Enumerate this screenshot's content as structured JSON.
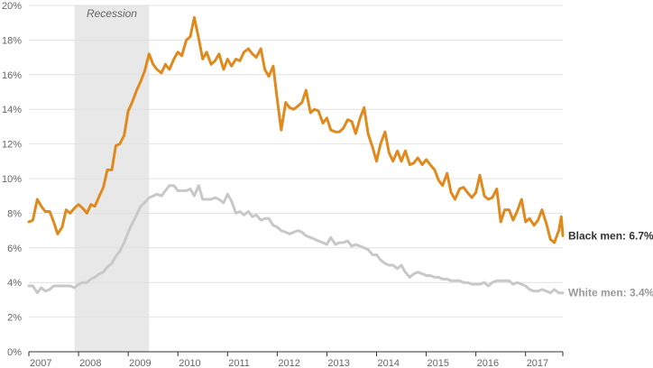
{
  "chart_data": {
    "type": "line",
    "title": "",
    "xlabel": "",
    "ylabel": "",
    "xlim": [
      2007.0,
      2017.75
    ],
    "ylim": [
      0,
      20
    ],
    "grid": true,
    "y_ticks": [
      0,
      2,
      4,
      6,
      8,
      10,
      12,
      14,
      16,
      18,
      20
    ],
    "y_tick_labels": [
      "0%",
      "2%",
      "4%",
      "6%",
      "8%",
      "10%",
      "12%",
      "14%",
      "16%",
      "18%",
      "20%"
    ],
    "x_ticks": [
      2007,
      2008,
      2009,
      2010,
      2011,
      2012,
      2013,
      2014,
      2015,
      2016,
      2017
    ],
    "x_tick_labels": [
      "2007",
      "2008",
      "2009",
      "2010",
      "2011",
      "2012",
      "2013",
      "2014",
      "2015",
      "2016",
      "2017"
    ],
    "recession": {
      "label": "Recession",
      "start": 2007.92,
      "end": 2009.42,
      "color": "#e8e8e8"
    },
    "series": [
      {
        "name": "Black men",
        "end_label": "Black men: 6.7%",
        "color": "#e08a1e",
        "points": [
          [
            2007.0,
            7.5
          ],
          [
            2007.08,
            7.6
          ],
          [
            2007.17,
            8.8
          ],
          [
            2007.25,
            8.4
          ],
          [
            2007.33,
            8.1
          ],
          [
            2007.42,
            8.1
          ],
          [
            2007.5,
            7.5
          ],
          [
            2007.58,
            6.8
          ],
          [
            2007.67,
            7.2
          ],
          [
            2007.75,
            8.2
          ],
          [
            2007.83,
            8.0
          ],
          [
            2007.92,
            8.3
          ],
          [
            2008.0,
            8.5
          ],
          [
            2008.08,
            8.3
          ],
          [
            2008.17,
            8.0
          ],
          [
            2008.25,
            8.5
          ],
          [
            2008.33,
            8.4
          ],
          [
            2008.42,
            9.0
          ],
          [
            2008.5,
            9.5
          ],
          [
            2008.58,
            10.5
          ],
          [
            2008.67,
            10.5
          ],
          [
            2008.75,
            11.9
          ],
          [
            2008.83,
            12.0
          ],
          [
            2008.92,
            12.5
          ],
          [
            2009.0,
            13.9
          ],
          [
            2009.08,
            14.4
          ],
          [
            2009.17,
            15.1
          ],
          [
            2009.25,
            15.6
          ],
          [
            2009.33,
            16.2
          ],
          [
            2009.42,
            17.2
          ],
          [
            2009.5,
            16.6
          ],
          [
            2009.58,
            16.3
          ],
          [
            2009.67,
            16.1
          ],
          [
            2009.75,
            16.6
          ],
          [
            2009.83,
            16.3
          ],
          [
            2009.92,
            16.9
          ],
          [
            2010.0,
            17.3
          ],
          [
            2010.08,
            17.1
          ],
          [
            2010.17,
            18.0
          ],
          [
            2010.25,
            18.2
          ],
          [
            2010.33,
            19.3
          ],
          [
            2010.42,
            18.1
          ],
          [
            2010.5,
            16.9
          ],
          [
            2010.58,
            17.3
          ],
          [
            2010.67,
            16.6
          ],
          [
            2010.75,
            16.8
          ],
          [
            2010.83,
            17.2
          ],
          [
            2010.92,
            16.3
          ],
          [
            2011.0,
            16.9
          ],
          [
            2011.08,
            16.5
          ],
          [
            2011.17,
            16.9
          ],
          [
            2011.25,
            16.8
          ],
          [
            2011.33,
            17.3
          ],
          [
            2011.42,
            17.5
          ],
          [
            2011.5,
            17.2
          ],
          [
            2011.58,
            17.0
          ],
          [
            2011.67,
            17.5
          ],
          [
            2011.75,
            16.3
          ],
          [
            2011.83,
            15.9
          ],
          [
            2011.92,
            16.5
          ],
          [
            2012.0,
            14.6
          ],
          [
            2012.08,
            12.8
          ],
          [
            2012.17,
            14.4
          ],
          [
            2012.25,
            14.1
          ],
          [
            2012.33,
            14.0
          ],
          [
            2012.42,
            14.2
          ],
          [
            2012.5,
            14.4
          ],
          [
            2012.58,
            15.1
          ],
          [
            2012.67,
            13.8
          ],
          [
            2012.75,
            14.0
          ],
          [
            2012.83,
            13.9
          ],
          [
            2012.92,
            13.2
          ],
          [
            2013.0,
            13.5
          ],
          [
            2013.08,
            12.8
          ],
          [
            2013.17,
            12.7
          ],
          [
            2013.25,
            12.7
          ],
          [
            2013.33,
            12.9
          ],
          [
            2013.42,
            13.4
          ],
          [
            2013.5,
            13.3
          ],
          [
            2013.58,
            12.6
          ],
          [
            2013.67,
            13.5
          ],
          [
            2013.75,
            14.1
          ],
          [
            2013.83,
            12.6
          ],
          [
            2013.92,
            11.8
          ],
          [
            2014.0,
            11.0
          ],
          [
            2014.08,
            12.0
          ],
          [
            2014.17,
            12.7
          ],
          [
            2014.25,
            11.5
          ],
          [
            2014.33,
            11.0
          ],
          [
            2014.42,
            11.6
          ],
          [
            2014.5,
            11.0
          ],
          [
            2014.58,
            11.6
          ],
          [
            2014.67,
            10.8
          ],
          [
            2014.75,
            10.9
          ],
          [
            2014.83,
            11.2
          ],
          [
            2014.92,
            10.8
          ],
          [
            2015.0,
            11.1
          ],
          [
            2015.08,
            10.8
          ],
          [
            2015.17,
            10.5
          ],
          [
            2015.25,
            9.9
          ],
          [
            2015.33,
            9.6
          ],
          [
            2015.42,
            10.3
          ],
          [
            2015.5,
            9.2
          ],
          [
            2015.58,
            8.8
          ],
          [
            2015.67,
            9.4
          ],
          [
            2015.75,
            9.5
          ],
          [
            2015.83,
            9.2
          ],
          [
            2015.92,
            8.9
          ],
          [
            2016.0,
            9.2
          ],
          [
            2016.08,
            10.2
          ],
          [
            2016.17,
            9.0
          ],
          [
            2016.25,
            8.8
          ],
          [
            2016.33,
            8.9
          ],
          [
            2016.42,
            9.4
          ],
          [
            2016.5,
            7.5
          ],
          [
            2016.58,
            8.2
          ],
          [
            2016.67,
            8.2
          ],
          [
            2016.75,
            7.6
          ],
          [
            2016.83,
            8.1
          ],
          [
            2016.92,
            8.8
          ],
          [
            2017.0,
            7.5
          ],
          [
            2017.08,
            7.7
          ],
          [
            2017.17,
            7.3
          ],
          [
            2017.25,
            7.6
          ],
          [
            2017.33,
            8.2
          ],
          [
            2017.42,
            7.4
          ],
          [
            2017.5,
            6.5
          ],
          [
            2017.58,
            6.3
          ],
          [
            2017.67,
            7.0
          ],
          [
            2017.72,
            7.8
          ],
          [
            2017.75,
            6.7
          ]
        ]
      },
      {
        "name": "White men",
        "end_label": "White men: 3.4%",
        "color": "#c8c8c8",
        "points": [
          [
            2007.0,
            3.8
          ],
          [
            2007.08,
            3.8
          ],
          [
            2007.17,
            3.4
          ],
          [
            2007.25,
            3.7
          ],
          [
            2007.33,
            3.5
          ],
          [
            2007.42,
            3.6
          ],
          [
            2007.5,
            3.8
          ],
          [
            2007.58,
            3.8
          ],
          [
            2007.67,
            3.8
          ],
          [
            2007.75,
            3.8
          ],
          [
            2007.83,
            3.8
          ],
          [
            2007.92,
            3.7
          ],
          [
            2008.0,
            3.9
          ],
          [
            2008.08,
            4.0
          ],
          [
            2008.17,
            4.0
          ],
          [
            2008.25,
            4.2
          ],
          [
            2008.33,
            4.3
          ],
          [
            2008.42,
            4.5
          ],
          [
            2008.5,
            4.6
          ],
          [
            2008.58,
            4.9
          ],
          [
            2008.67,
            5.1
          ],
          [
            2008.75,
            5.5
          ],
          [
            2008.83,
            5.8
          ],
          [
            2008.92,
            6.3
          ],
          [
            2009.0,
            6.9
          ],
          [
            2009.08,
            7.4
          ],
          [
            2009.17,
            7.9
          ],
          [
            2009.25,
            8.4
          ],
          [
            2009.33,
            8.6
          ],
          [
            2009.42,
            8.9
          ],
          [
            2009.5,
            9.0
          ],
          [
            2009.58,
            9.1
          ],
          [
            2009.67,
            9.0
          ],
          [
            2009.75,
            9.3
          ],
          [
            2009.83,
            9.6
          ],
          [
            2009.92,
            9.6
          ],
          [
            2010.0,
            9.3
          ],
          [
            2010.08,
            9.3
          ],
          [
            2010.17,
            9.3
          ],
          [
            2010.25,
            9.4
          ],
          [
            2010.33,
            9.0
          ],
          [
            2010.42,
            9.6
          ],
          [
            2010.5,
            8.8
          ],
          [
            2010.58,
            8.8
          ],
          [
            2010.67,
            8.8
          ],
          [
            2010.75,
            8.9
          ],
          [
            2010.83,
            8.8
          ],
          [
            2010.92,
            8.6
          ],
          [
            2011.0,
            9.1
          ],
          [
            2011.08,
            8.7
          ],
          [
            2011.17,
            8.0
          ],
          [
            2011.25,
            8.1
          ],
          [
            2011.33,
            7.9
          ],
          [
            2011.42,
            8.1
          ],
          [
            2011.5,
            7.8
          ],
          [
            2011.58,
            7.9
          ],
          [
            2011.67,
            7.6
          ],
          [
            2011.75,
            7.7
          ],
          [
            2011.83,
            7.7
          ],
          [
            2011.92,
            7.3
          ],
          [
            2012.0,
            7.2
          ],
          [
            2012.08,
            7.0
          ],
          [
            2012.17,
            6.9
          ],
          [
            2012.25,
            6.8
          ],
          [
            2012.33,
            6.9
          ],
          [
            2012.42,
            7.0
          ],
          [
            2012.5,
            6.9
          ],
          [
            2012.58,
            6.7
          ],
          [
            2012.67,
            6.6
          ],
          [
            2012.75,
            6.5
          ],
          [
            2012.83,
            6.4
          ],
          [
            2012.92,
            6.3
          ],
          [
            2013.0,
            6.2
          ],
          [
            2013.08,
            6.6
          ],
          [
            2013.17,
            6.2
          ],
          [
            2013.25,
            6.3
          ],
          [
            2013.33,
            6.3
          ],
          [
            2013.42,
            6.4
          ],
          [
            2013.5,
            6.1
          ],
          [
            2013.58,
            6.2
          ],
          [
            2013.67,
            6.1
          ],
          [
            2013.75,
            6.0
          ],
          [
            2013.83,
            5.9
          ],
          [
            2013.92,
            5.6
          ],
          [
            2014.0,
            5.6
          ],
          [
            2014.08,
            5.3
          ],
          [
            2014.17,
            5.1
          ],
          [
            2014.25,
            5.0
          ],
          [
            2014.33,
            5.0
          ],
          [
            2014.42,
            4.8
          ],
          [
            2014.5,
            5.0
          ],
          [
            2014.58,
            4.6
          ],
          [
            2014.67,
            4.3
          ],
          [
            2014.75,
            4.5
          ],
          [
            2014.83,
            4.6
          ],
          [
            2014.92,
            4.5
          ],
          [
            2015.0,
            4.4
          ],
          [
            2015.08,
            4.4
          ],
          [
            2015.17,
            4.3
          ],
          [
            2015.25,
            4.3
          ],
          [
            2015.33,
            4.2
          ],
          [
            2015.42,
            4.2
          ],
          [
            2015.5,
            4.1
          ],
          [
            2015.58,
            4.1
          ],
          [
            2015.67,
            4.1
          ],
          [
            2015.75,
            4.0
          ],
          [
            2015.83,
            4.0
          ],
          [
            2015.92,
            3.9
          ],
          [
            2016.0,
            3.9
          ],
          [
            2016.08,
            3.9
          ],
          [
            2016.17,
            4.0
          ],
          [
            2016.25,
            3.8
          ],
          [
            2016.33,
            4.0
          ],
          [
            2016.42,
            4.1
          ],
          [
            2016.5,
            4.1
          ],
          [
            2016.58,
            4.1
          ],
          [
            2016.67,
            4.1
          ],
          [
            2016.75,
            3.9
          ],
          [
            2016.83,
            4.0
          ],
          [
            2016.92,
            3.9
          ],
          [
            2017.0,
            3.8
          ],
          [
            2017.08,
            3.6
          ],
          [
            2017.17,
            3.5
          ],
          [
            2017.25,
            3.5
          ],
          [
            2017.33,
            3.6
          ],
          [
            2017.42,
            3.5
          ],
          [
            2017.5,
            3.4
          ],
          [
            2017.58,
            3.6
          ],
          [
            2017.67,
            3.4
          ],
          [
            2017.75,
            3.4
          ]
        ]
      }
    ]
  }
}
